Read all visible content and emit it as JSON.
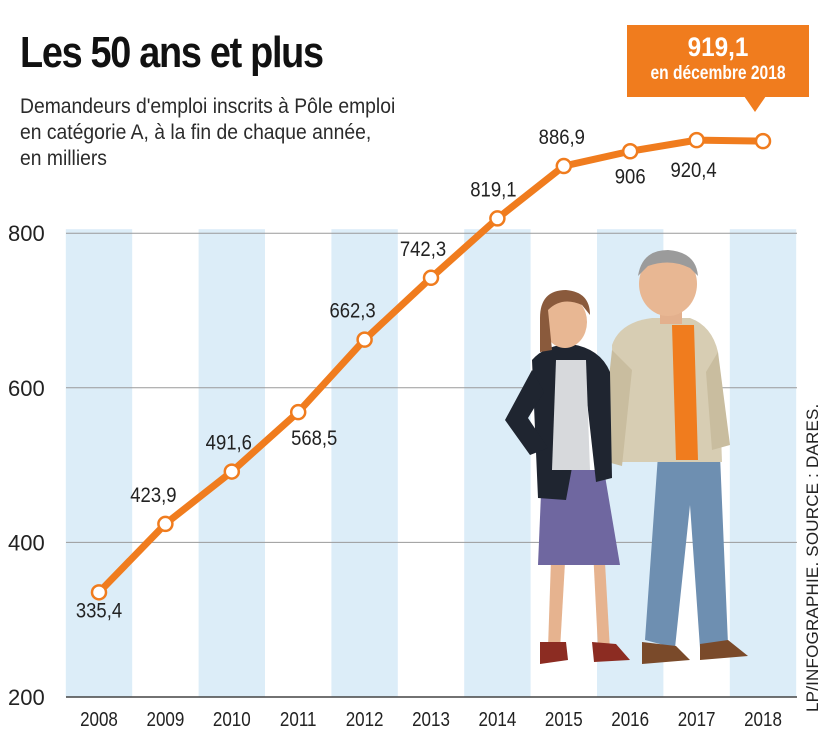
{
  "title": "Les 50 ans et plus",
  "subtitle_lines": [
    "Demandeurs d'emploi inscrits à Pôle emploi",
    "en catégorie A, à la fin de chaque année,",
    "en milliers"
  ],
  "callout": {
    "value": "919,1",
    "text": "en décembre 2018"
  },
  "credit": "LP/INFOGRAPHIE.      SOURCE : DARES.",
  "colors": {
    "line": "#f07c1e",
    "band": "#dcedf8",
    "grid": "#9a9a9a",
    "callout": "#f07c1e"
  },
  "chart_data": {
    "type": "line",
    "x": [
      "2008",
      "2009",
      "2010",
      "2011",
      "2012",
      "2013",
      "2014",
      "2015",
      "2016",
      "2017",
      "2018"
    ],
    "y": [
      335.4,
      423.9,
      491.6,
      568.5,
      662.3,
      742.3,
      819.1,
      886.9,
      906,
      920.4,
      919.1
    ],
    "data_labels": [
      "335,4",
      "423,9",
      "491,6",
      "568,5",
      "662,3",
      "742,3",
      "819,1",
      "886,9",
      "906",
      "920,4",
      ""
    ],
    "yticks": [
      200,
      400,
      600,
      800
    ],
    "ylim": [
      200,
      1000
    ],
    "grid": true,
    "alternating_year_bands": true,
    "illustration": "man-and-woman-figures"
  }
}
